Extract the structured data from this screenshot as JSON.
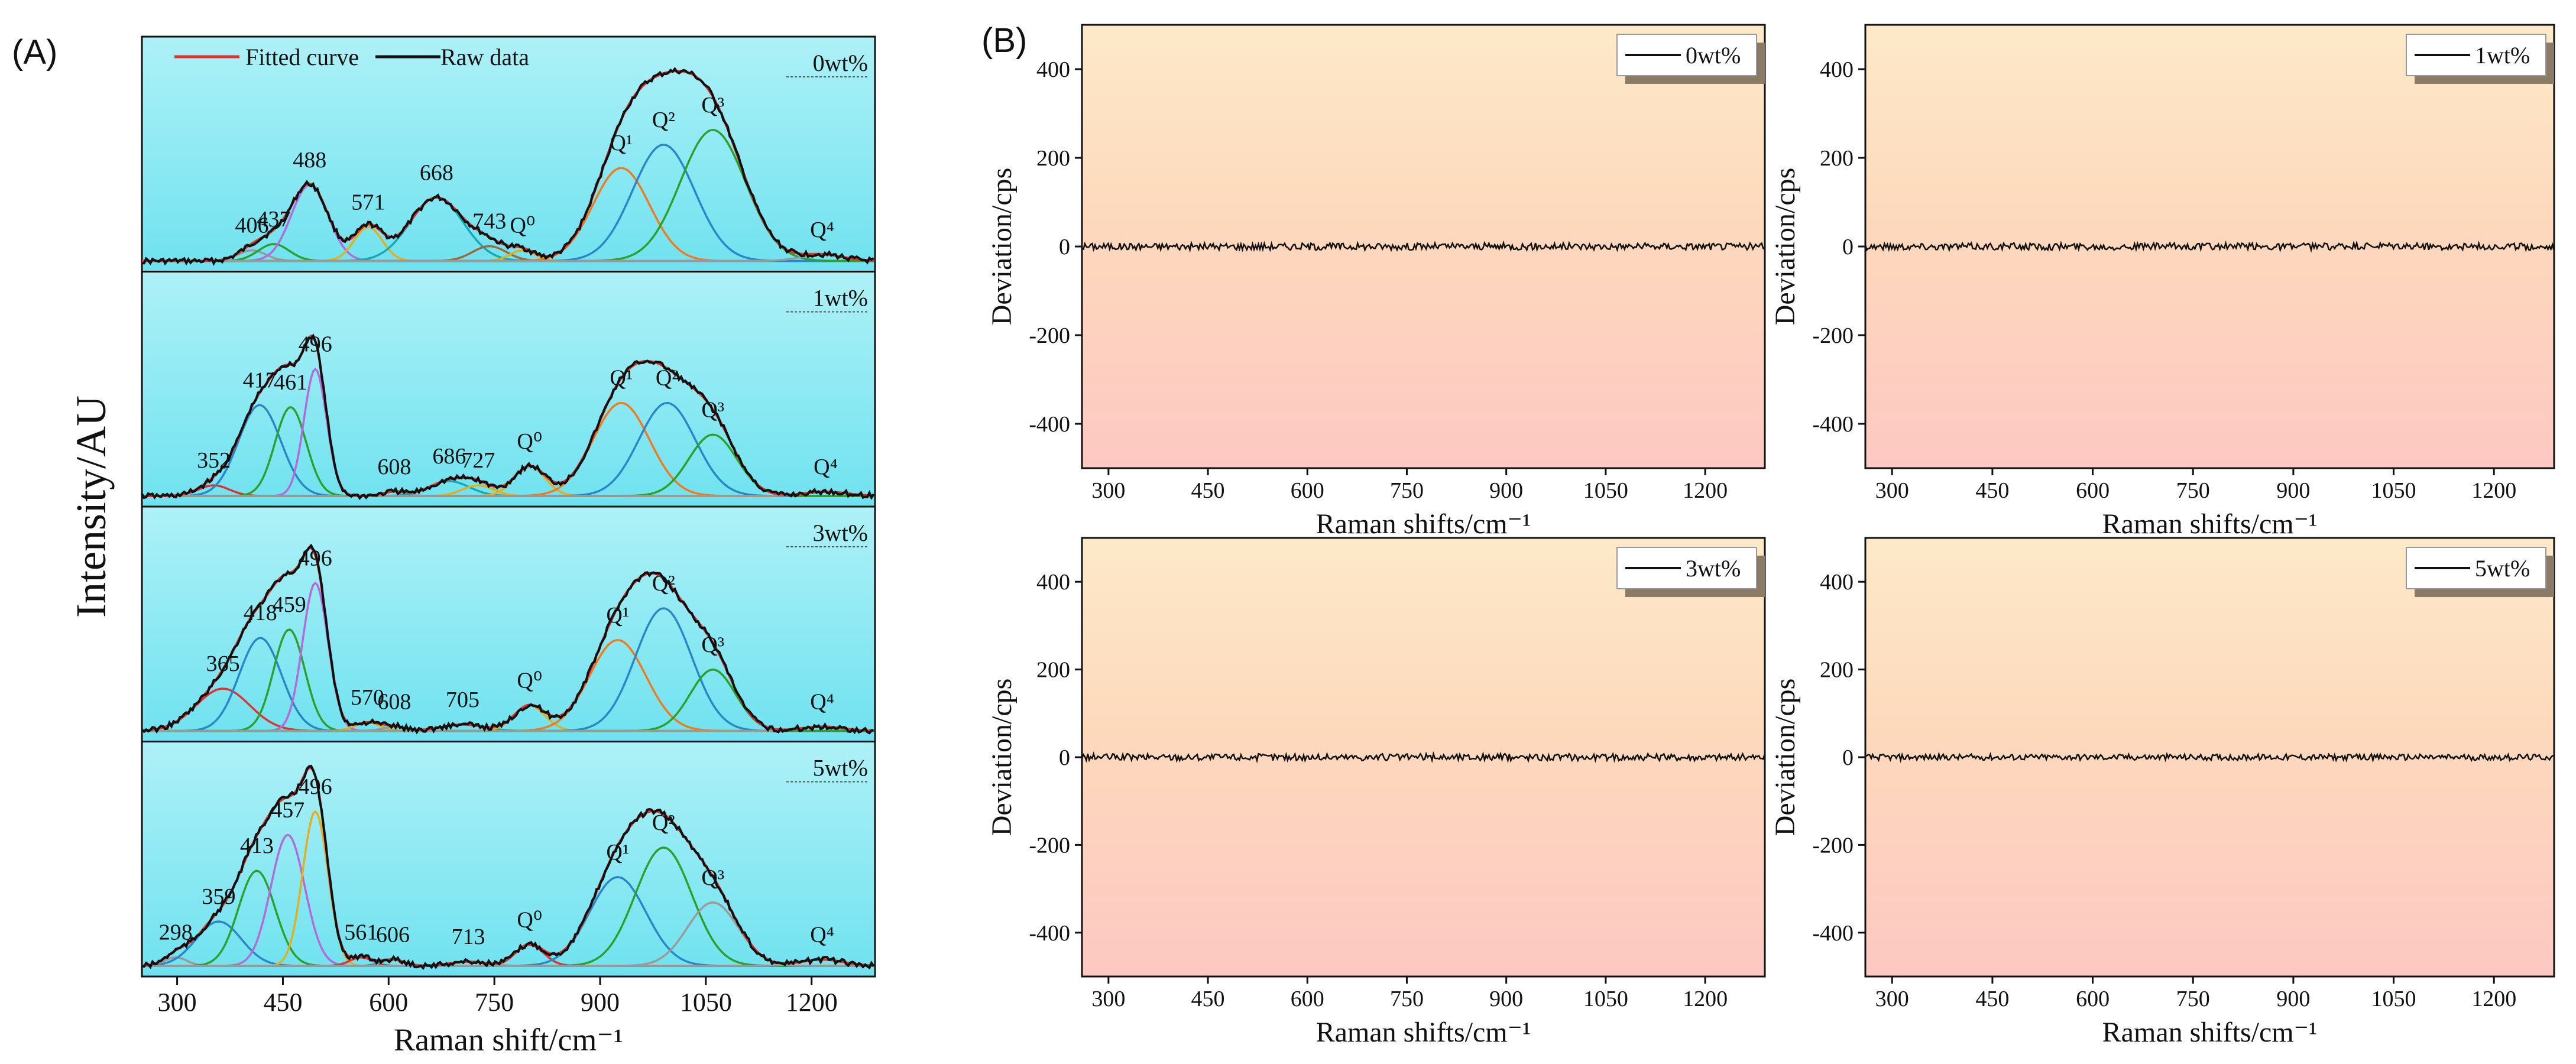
{
  "figure": {
    "panel_a_label": "(A)",
    "panel_b_label": "(B)"
  },
  "chart_data": [
    {
      "type": "line",
      "panel": "A",
      "title": "",
      "ylabel": "Intensity/AU",
      "xlabel": "Raman shift/cm⁻¹",
      "xlim": [
        250,
        1290
      ],
      "x_ticks": [
        300,
        450,
        600,
        750,
        900,
        1050,
        1200
      ],
      "legend": [
        {
          "name": "Fitted curve",
          "color": "#e03030"
        },
        {
          "name": "Raw data",
          "color": "#111111"
        }
      ],
      "subplots": [
        {
          "label": "0wt%",
          "peaks": [
            {
              "center": 406,
              "height": 0.05,
              "width": 20,
              "color": "#9a9a9a",
              "label": "406"
            },
            {
              "center": 437,
              "height": 0.08,
              "width": 22,
              "color": "#2ca02c",
              "label": "437"
            },
            {
              "center": 488,
              "height": 0.36,
              "width": 26,
              "color": "#b36adb",
              "label": "488"
            },
            {
              "center": 571,
              "height": 0.16,
              "width": 20,
              "color": "#e0b020",
              "label": "571"
            },
            {
              "center": 668,
              "height": 0.3,
              "width": 38,
              "color": "#17a8b8",
              "label": "668"
            },
            {
              "center": 743,
              "height": 0.07,
              "width": 24,
              "color": "#9a6a3a",
              "label": "743"
            },
            {
              "center": 790,
              "height": 0.05,
              "width": 18,
              "color": "#e0b020",
              "label": "Q⁰"
            },
            {
              "center": 930,
              "height": 0.44,
              "width": 40,
              "color": "#f07a20",
              "label": "Q¹"
            },
            {
              "center": 990,
              "height": 0.55,
              "width": 44,
              "color": "#2a86c8",
              "label": "Q²"
            },
            {
              "center": 1060,
              "height": 0.62,
              "width": 46,
              "color": "#2ca02c",
              "label": "Q³"
            },
            {
              "center": 1215,
              "height": 0.03,
              "width": 30,
              "color": "#9a9a9a",
              "label": "Q⁴"
            }
          ]
        },
        {
          "label": "1wt%",
          "peaks": [
            {
              "center": 352,
              "height": 0.05,
              "width": 22,
              "color": "#e03030",
              "label": "352"
            },
            {
              "center": 417,
              "height": 0.43,
              "width": 30,
              "color": "#2a86c8",
              "label": "417"
            },
            {
              "center": 461,
              "height": 0.42,
              "width": 22,
              "color": "#2ca02c",
              "label": "461"
            },
            {
              "center": 496,
              "height": 0.6,
              "width": 16,
              "color": "#b36adb",
              "label": "496"
            },
            {
              "center": 608,
              "height": 0.02,
              "width": 16,
              "color": "#9a9a9a",
              "label": "608"
            },
            {
              "center": 686,
              "height": 0.07,
              "width": 28,
              "color": "#17a8b8",
              "label": "686"
            },
            {
              "center": 727,
              "height": 0.05,
              "width": 22,
              "color": "#e0b020",
              "label": "727"
            },
            {
              "center": 800,
              "height": 0.14,
              "width": 22,
              "color": "#e0b020",
              "label": "Q⁰"
            },
            {
              "center": 930,
              "height": 0.44,
              "width": 40,
              "color": "#f07a20",
              "label": "Q¹"
            },
            {
              "center": 995,
              "height": 0.44,
              "width": 40,
              "color": "#2a86c8",
              "label": "Q²"
            },
            {
              "center": 1060,
              "height": 0.29,
              "width": 34,
              "color": "#2ca02c",
              "label": "Q³"
            },
            {
              "center": 1220,
              "height": 0.02,
              "width": 30,
              "color": "#9a9a9a",
              "label": "Q⁴"
            }
          ]
        },
        {
          "label": "3wt%",
          "peaks": [
            {
              "center": 365,
              "height": 0.2,
              "width": 38,
              "color": "#e03030",
              "label": "365"
            },
            {
              "center": 418,
              "height": 0.44,
              "width": 30,
              "color": "#2a86c8",
              "label": "418"
            },
            {
              "center": 459,
              "height": 0.48,
              "width": 22,
              "color": "#2ca02c",
              "label": "459"
            },
            {
              "center": 496,
              "height": 0.7,
              "width": 18,
              "color": "#b36adb",
              "label": "496"
            },
            {
              "center": 570,
              "height": 0.04,
              "width": 18,
              "color": "#e0b020",
              "label": "570"
            },
            {
              "center": 608,
              "height": 0.02,
              "width": 16,
              "color": "#9a9a9a",
              "label": "608"
            },
            {
              "center": 705,
              "height": 0.03,
              "width": 30,
              "color": "#17a8b8",
              "label": "705"
            },
            {
              "center": 800,
              "height": 0.12,
              "width": 22,
              "color": "#e0b020",
              "label": "Q⁰"
            },
            {
              "center": 925,
              "height": 0.43,
              "width": 40,
              "color": "#f07a20",
              "label": "Q¹"
            },
            {
              "center": 990,
              "height": 0.58,
              "width": 40,
              "color": "#2a86c8",
              "label": "Q²"
            },
            {
              "center": 1060,
              "height": 0.29,
              "width": 32,
              "color": "#2ca02c",
              "label": "Q³"
            },
            {
              "center": 1215,
              "height": 0.02,
              "width": 30,
              "color": "#9a9a9a",
              "label": "Q⁴"
            }
          ]
        },
        {
          "label": "5wt%",
          "peaks": [
            {
              "center": 298,
              "height": 0.04,
              "width": 16,
              "color": "#9a9a9a",
              "label": "298"
            },
            {
              "center": 359,
              "height": 0.21,
              "width": 32,
              "color": "#2a86c8",
              "label": "359"
            },
            {
              "center": 413,
              "height": 0.45,
              "width": 26,
              "color": "#2ca02c",
              "label": "413"
            },
            {
              "center": 457,
              "height": 0.62,
              "width": 24,
              "color": "#b36adb",
              "label": "457"
            },
            {
              "center": 496,
              "height": 0.73,
              "width": 18,
              "color": "#e0b020",
              "label": "496"
            },
            {
              "center": 561,
              "height": 0.04,
              "width": 16,
              "color": "#e03030",
              "label": "561"
            },
            {
              "center": 606,
              "height": 0.03,
              "width": 16,
              "color": "#17a8b8",
              "label": "606"
            },
            {
              "center": 713,
              "height": 0.02,
              "width": 26,
              "color": "#9a9a9a",
              "label": "713"
            },
            {
              "center": 800,
              "height": 0.1,
              "width": 20,
              "color": "#e03030",
              "label": "Q⁰"
            },
            {
              "center": 925,
              "height": 0.42,
              "width": 40,
              "color": "#2a86c8",
              "label": "Q¹"
            },
            {
              "center": 990,
              "height": 0.56,
              "width": 40,
              "color": "#2ca02c",
              "label": "Q²"
            },
            {
              "center": 1060,
              "height": 0.3,
              "width": 36,
              "color": "#9a9a9a",
              "label": "Q³"
            },
            {
              "center": 1215,
              "height": 0.03,
              "width": 30,
              "color": "#9a9a9a",
              "label": "Q⁴"
            }
          ]
        }
      ]
    },
    {
      "type": "line",
      "panel": "B",
      "xlabel": "Raman shifts/cm⁻¹",
      "ylabel": "Deviation/cps",
      "xlim": [
        260,
        1290
      ],
      "ylim": [
        -500,
        500
      ],
      "x_ticks": [
        300,
        450,
        600,
        750,
        900,
        1050,
        1200
      ],
      "y_ticks": [
        400,
        200,
        0,
        -200,
        -400
      ],
      "series_color": "#111111",
      "subplots": [
        {
          "label": "0wt%",
          "deviation_level": 0,
          "noise_amplitude": 8
        },
        {
          "label": "1wt%",
          "deviation_level": 0,
          "noise_amplitude": 8
        },
        {
          "label": "3wt%",
          "deviation_level": 0,
          "noise_amplitude": 8
        },
        {
          "label": "5wt%",
          "deviation_level": 0,
          "noise_amplitude": 7
        }
      ]
    }
  ]
}
